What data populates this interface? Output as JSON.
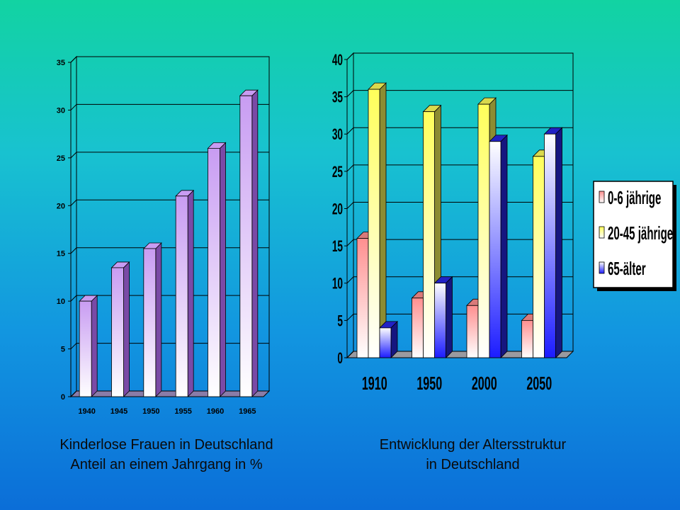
{
  "chart_data": [
    {
      "type": "bar",
      "categories": [
        "1940",
        "1945",
        "1950",
        "1955",
        "1960",
        "1965"
      ],
      "values": [
        10,
        13.5,
        15.5,
        21,
        26,
        31.5
      ],
      "ylim": [
        0,
        35
      ],
      "yticks": [
        "0",
        "5",
        "10",
        "15",
        "20",
        "25",
        "30",
        "35"
      ],
      "caption_lines": [
        "Kinderlose Frauen in Deutschland",
        "Anteil an einem Jahrgang in %"
      ],
      "colors": {
        "bar_top": "#c89cf2",
        "bar_bottom": "#ffffff",
        "bar_side": "#7a4aa6"
      },
      "grid": true
    },
    {
      "type": "bar",
      "categories": [
        "1910",
        "1950",
        "2000",
        "2050"
      ],
      "series": [
        {
          "name": "0-6 jährige",
          "values": [
            16,
            8,
            7,
            5
          ],
          "color": "#ff8f8f"
        },
        {
          "name": "20-45 jährige",
          "values": [
            36,
            33,
            34,
            27
          ],
          "color": "#ffff5a"
        },
        {
          "name": "65-älter",
          "values": [
            4,
            10,
            29,
            30
          ],
          "color": "#2828e6"
        }
      ],
      "ylim": [
        0,
        40
      ],
      "yticks": [
        "0",
        "5",
        "10",
        "15",
        "20",
        "25",
        "30",
        "35",
        "40"
      ],
      "legend_position": "right",
      "caption_lines": [
        "Entwicklung der Altersstruktur",
        "in Deutschland"
      ],
      "grid": true
    }
  ]
}
